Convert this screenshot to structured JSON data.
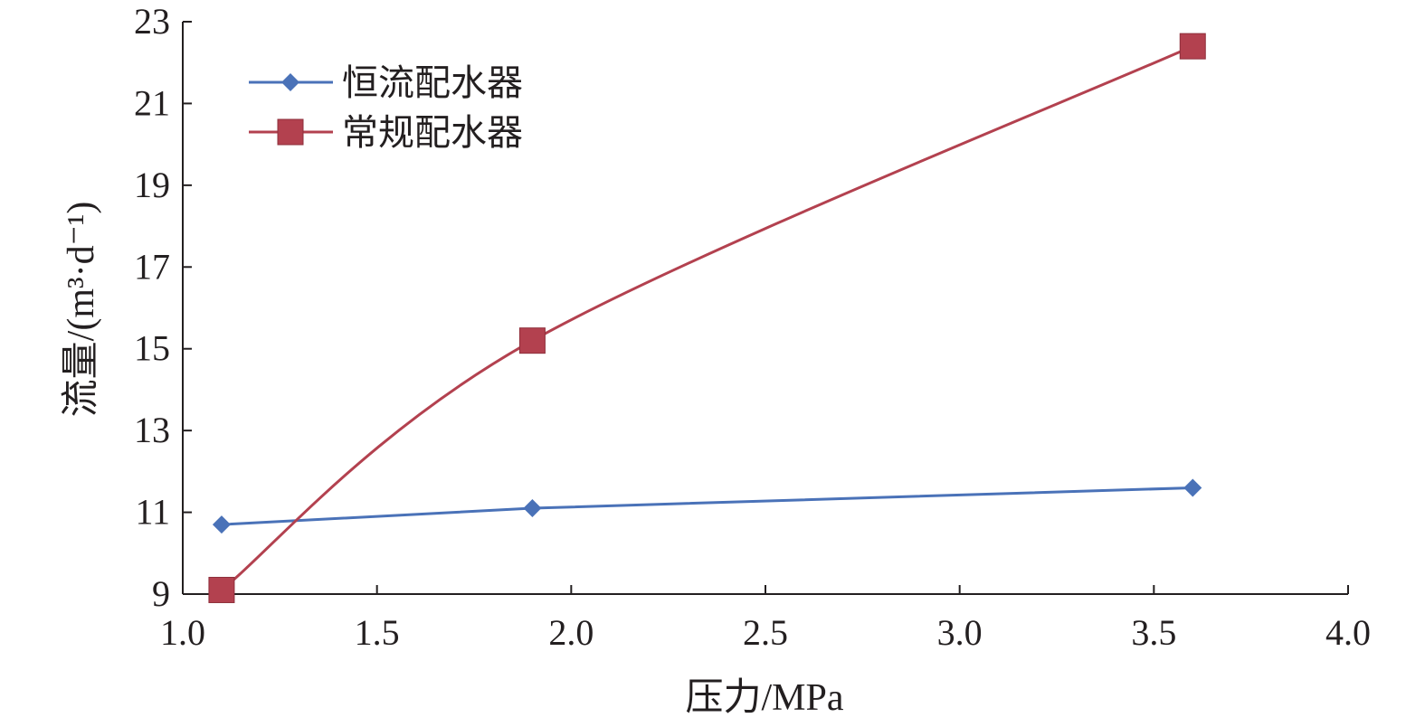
{
  "chart_data": {
    "type": "line",
    "title": "",
    "xlabel": "压力/MPa",
    "ylabel": "流量/(m³·d⁻¹)",
    "xlim": [
      1.0,
      4.0
    ],
    "ylim": [
      9,
      23
    ],
    "xticks": [
      "1.0",
      "1.5",
      "2.0",
      "2.5",
      "3.0",
      "3.5",
      "4.0"
    ],
    "yticks": [
      "9",
      "11",
      "13",
      "15",
      "17",
      "19",
      "21",
      "23"
    ],
    "grid": false,
    "legend_position": "top-left",
    "x": [
      1.1,
      1.9,
      3.6
    ],
    "series": [
      {
        "name": "恒流配水器",
        "values": [
          10.7,
          11.1,
          11.6
        ],
        "color": "#4a72b8",
        "marker": "diamond",
        "smooth": false
      },
      {
        "name": "常规配水器",
        "values": [
          9.1,
          15.2,
          22.4
        ],
        "color": "#b3414f",
        "marker": "square",
        "smooth": true
      }
    ]
  }
}
